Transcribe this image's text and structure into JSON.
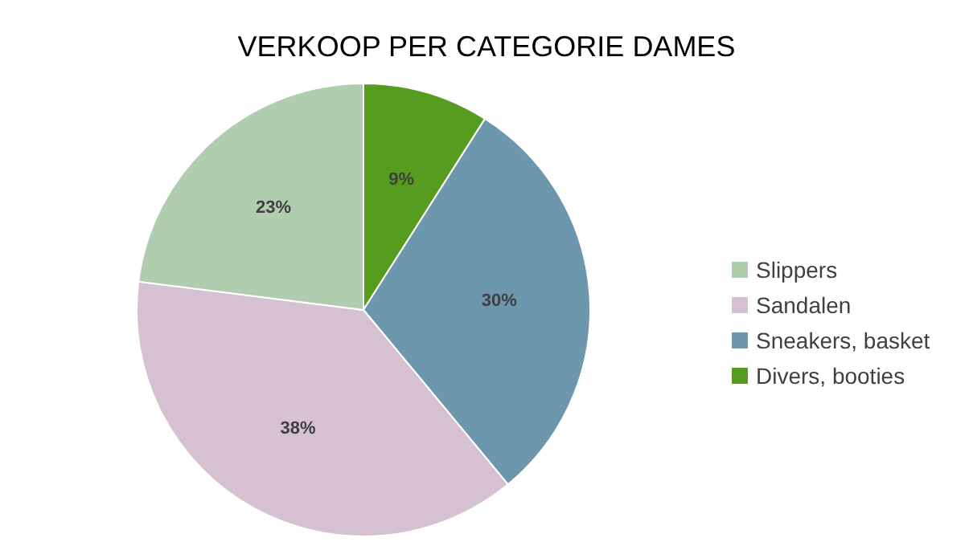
{
  "chart_data": {
    "type": "pie",
    "title": "VERKOOP PER CATEGORIE DAMES",
    "categories": [
      "Slippers",
      "Sandalen",
      "Sneakers, basket",
      "Divers, booties"
    ],
    "values": [
      23,
      38,
      30,
      9
    ],
    "value_labels": [
      "23%",
      "38%",
      "30%",
      "9%"
    ],
    "colors": [
      "#b0cdb0",
      "#d5c1d1",
      "#6d97ad",
      "#569c1e"
    ],
    "legend": "right"
  }
}
